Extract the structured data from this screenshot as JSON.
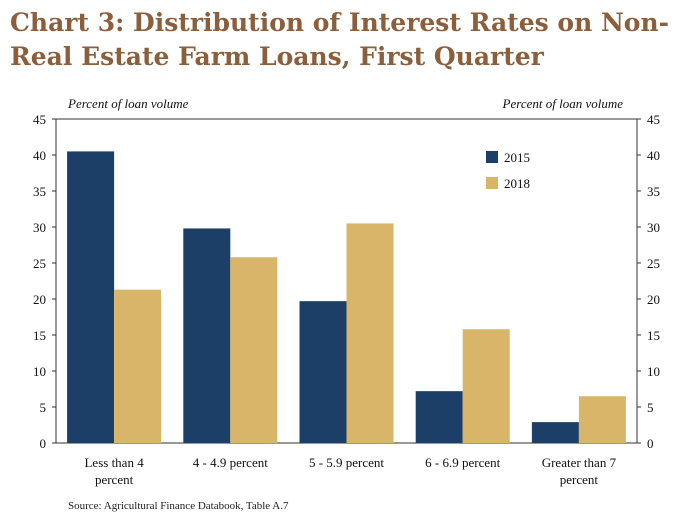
{
  "title": {
    "line1": "Chart 3: Distribution of Interest Rates on Non-",
    "line2": "Real Estate Farm Loans, First Quarter"
  },
  "source": "Source: Agricultural Finance Databook, Table A.7",
  "colors": {
    "s2015": "#1B3F66",
    "s2018": "#D9B56A",
    "axis": "#333333",
    "text": "#111111"
  },
  "chart_data": {
    "type": "bar",
    "ylabel_left": "Percent of loan volume",
    "ylabel_right": "Percent of loan volume",
    "ylim": [
      0,
      45
    ],
    "yticks": [
      0,
      5,
      10,
      15,
      20,
      25,
      30,
      35,
      40,
      45
    ],
    "categories": [
      [
        "Less than 4",
        "percent"
      ],
      [
        "4 - 4.9 percent"
      ],
      [
        "5 - 5.9 percent"
      ],
      [
        "6 - 6.9 percent"
      ],
      [
        "Greater than 7",
        "percent"
      ]
    ],
    "series": [
      {
        "name": "2015",
        "values": [
          40.5,
          29.8,
          19.7,
          7.2,
          2.9
        ]
      },
      {
        "name": "2018",
        "values": [
          21.3,
          25.8,
          30.5,
          15.8,
          6.5
        ]
      }
    ],
    "legend_position": "top-right"
  }
}
